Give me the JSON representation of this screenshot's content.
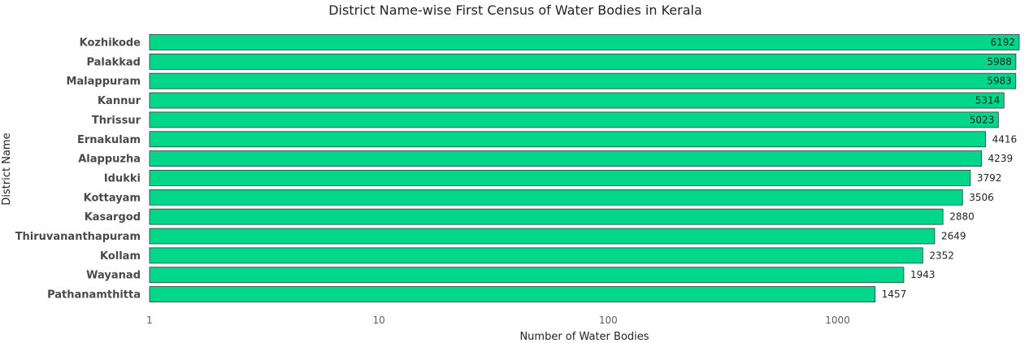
{
  "chart_data": {
    "type": "bar",
    "orientation": "horizontal",
    "title": "District Name-wise First Census of Water Bodies in Kerala",
    "xlabel": "Number of Water Bodies",
    "ylabel": "District Name",
    "x_scale": "log",
    "xlim": [
      1,
      6192
    ],
    "x_ticks": [
      "1",
      "10",
      "100",
      "1000"
    ],
    "grid": false,
    "legend": "none",
    "bar_color": "#01D68B",
    "bar_border_color": "#3a3a3a",
    "categories": [
      "Kozhikode",
      "Palakkad",
      "Malappuram",
      "Kannur",
      "Thrissur",
      "Ernakulam",
      "Alappuzha",
      "Idukki",
      "Kottayam",
      "Kasargod",
      "Thiruvananthapuram",
      "Kollam",
      "Wayanad",
      "Pathanamthitta"
    ],
    "values": [
      6192,
      5988,
      5983,
      5314,
      5023,
      4416,
      4239,
      3792,
      3506,
      2880,
      2649,
      2352,
      1943,
      1457
    ],
    "data_labels": [
      "6192",
      "5988",
      "5983",
      "5314",
      "5023",
      "4416",
      "4239",
      "3792",
      "3506",
      "2880",
      "2649",
      "2352",
      "1943",
      "1457"
    ]
  }
}
